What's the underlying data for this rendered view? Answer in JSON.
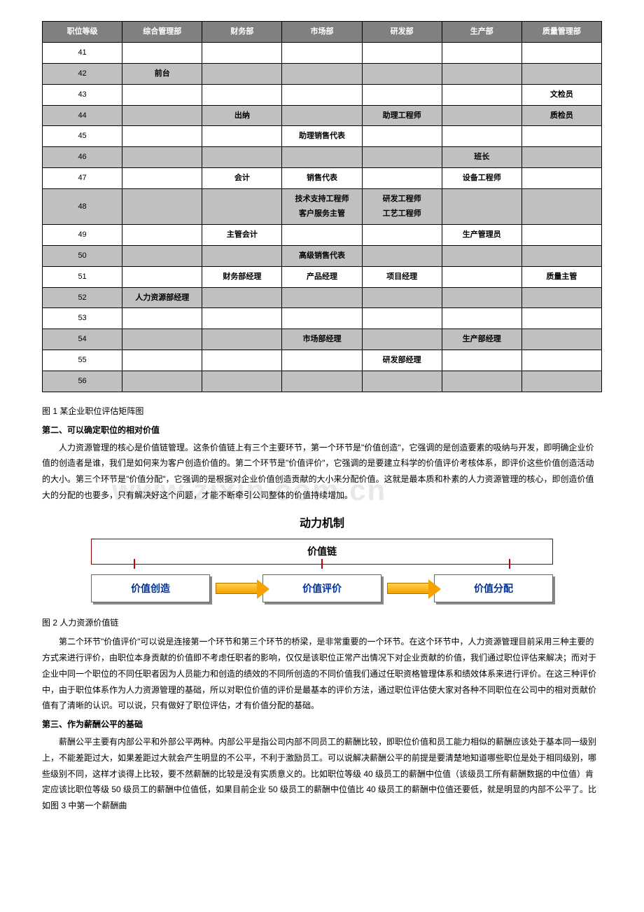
{
  "watermark": "www.zixin.com.cn",
  "table": {
    "headers": [
      "职位等级",
      "综合管理部",
      "财务部",
      "市场部",
      "研发部",
      "生产部",
      "质量管理部"
    ],
    "rows": [
      {
        "shade": false,
        "cells": [
          "41",
          "",
          "",
          "",
          "",
          "",
          ""
        ]
      },
      {
        "shade": true,
        "cells": [
          "42",
          "前台",
          "",
          "",
          "",
          "",
          ""
        ]
      },
      {
        "shade": false,
        "cells": [
          "43",
          "",
          "",
          "",
          "",
          "",
          "文检员"
        ]
      },
      {
        "shade": true,
        "cells": [
          "44",
          "",
          "出纳",
          "",
          "助理工程师",
          "",
          "质检员"
        ]
      },
      {
        "shade": false,
        "cells": [
          "45",
          "",
          "",
          "助理销售代表",
          "",
          "",
          ""
        ]
      },
      {
        "shade": true,
        "cells": [
          "46",
          "",
          "",
          "",
          "",
          "班长",
          ""
        ]
      },
      {
        "shade": false,
        "cells": [
          "47",
          "",
          "会计",
          "销售代表",
          "",
          "设备工程师",
          ""
        ]
      },
      {
        "shade": true,
        "cells": [
          "48",
          "",
          "",
          "技术支持工程师\n客户服务主管",
          "研发工程师\n工艺工程师",
          "",
          ""
        ]
      },
      {
        "shade": false,
        "cells": [
          "49",
          "",
          "主管会计",
          "",
          "",
          "生产管理员",
          ""
        ]
      },
      {
        "shade": true,
        "cells": [
          "50",
          "",
          "",
          "高级销售代表",
          "",
          "",
          ""
        ]
      },
      {
        "shade": false,
        "cells": [
          "51",
          "",
          "财务部经理",
          "产品经理",
          "项目经理",
          "",
          "质量主管"
        ]
      },
      {
        "shade": true,
        "cells": [
          "52",
          "人力资源部经理",
          "",
          "",
          "",
          "",
          ""
        ]
      },
      {
        "shade": false,
        "cells": [
          "53",
          "",
          "",
          "",
          "",
          "",
          ""
        ]
      },
      {
        "shade": true,
        "cells": [
          "54",
          "",
          "",
          "市场部经理",
          "",
          "生产部经理",
          ""
        ]
      },
      {
        "shade": false,
        "cells": [
          "55",
          "",
          "",
          "",
          "研发部经理",
          "",
          ""
        ]
      },
      {
        "shade": true,
        "cells": [
          "56",
          "",
          "",
          "",
          "",
          "",
          ""
        ]
      }
    ]
  },
  "caption1": "图 1  某企业职位评估矩阵图",
  "sec2_head": "第二、可以确定职位的相对价值",
  "sec2_p1": "人力资源管理的核心是价值链管理。这条价值链上有三个主要环节，第一个环节是\"价值创造\"，它强调的是创造要素的吸纳与开发，即明确企业价值的创造者是谁，我们是如何来为客户创造价值的。第二个环节是\"价值评价\"，它强调的是要建立科学的价值评价考核体系，即评价这些价值创造活动的大小。第三个环节是\"价值分配\"，它强调的是根据对企业价值创造贡献的大小来分配价值。这就是最本质和朴素的人力资源管理的核心，即创造价值大的分配的也要多，只有解决好这个问题，才能不断牵引公司整体的价值持续增加。",
  "diagram": {
    "title": "动力机制",
    "chain": "价值链",
    "nodes": [
      "价值创造",
      "价值评价",
      "价值分配"
    ]
  },
  "caption2": "图 2 人力资源价值链",
  "sec2_p2": "第二个环节\"价值评价\"可以说是连接第一个环节和第三个环节的桥梁，是非常重要的一个环节。在这个环节中，人力资源管理目前采用三种主要的方式来进行评价，由职位本身贡献的价值即不考虑任职者的影响，仅仅是该职位正常产出情况下对企业贡献的价值，我们通过职位评估来解决；而对于企业中同一个职位的不同任职者因为人员能力和创造的绩效的不同所创造的不同价值我们通过任职资格管理体系和绩效体系来进行评价。在这三种评价中，由于职位体系作为人力资源管理的基础，所以对职位价值的评价是最基本的评价方法，通过职位评估使大家对各种不同职位在公司中的相对贡献价值有了清晰的认识。可以说，只有做好了职位评估，才有价值分配的基础。",
  "sec3_head": "第三、作为薪酬公平的基础",
  "sec3_p1": "薪酬公平主要有内部公平和外部公平两种。内部公平是指公司内部不同员工的薪酬比较，即职位价值和员工能力相似的薪酬应该处于基本同一级别上，不能差距过大，如果差距过大就会产生明显的不公平，不利于激励员工。可以说解决薪酬公平的前提是要清楚地知道哪些职位是处于相同级别，哪些级别不同，这样才谈得上比较，要不然薪酬的比较是没有实质意义的。比如职位等级 40 级员工的薪酬中位值（该级员工所有薪酬数据的中位值）肯定应该比职位等级 50 级员工的薪酬中位值低，如果目前企业 50 级员工的薪酬中位值比 40 级员工的薪酬中位值还要低，就是明显的内部不公平了。比如图 3 中第一个薪酬曲"
}
